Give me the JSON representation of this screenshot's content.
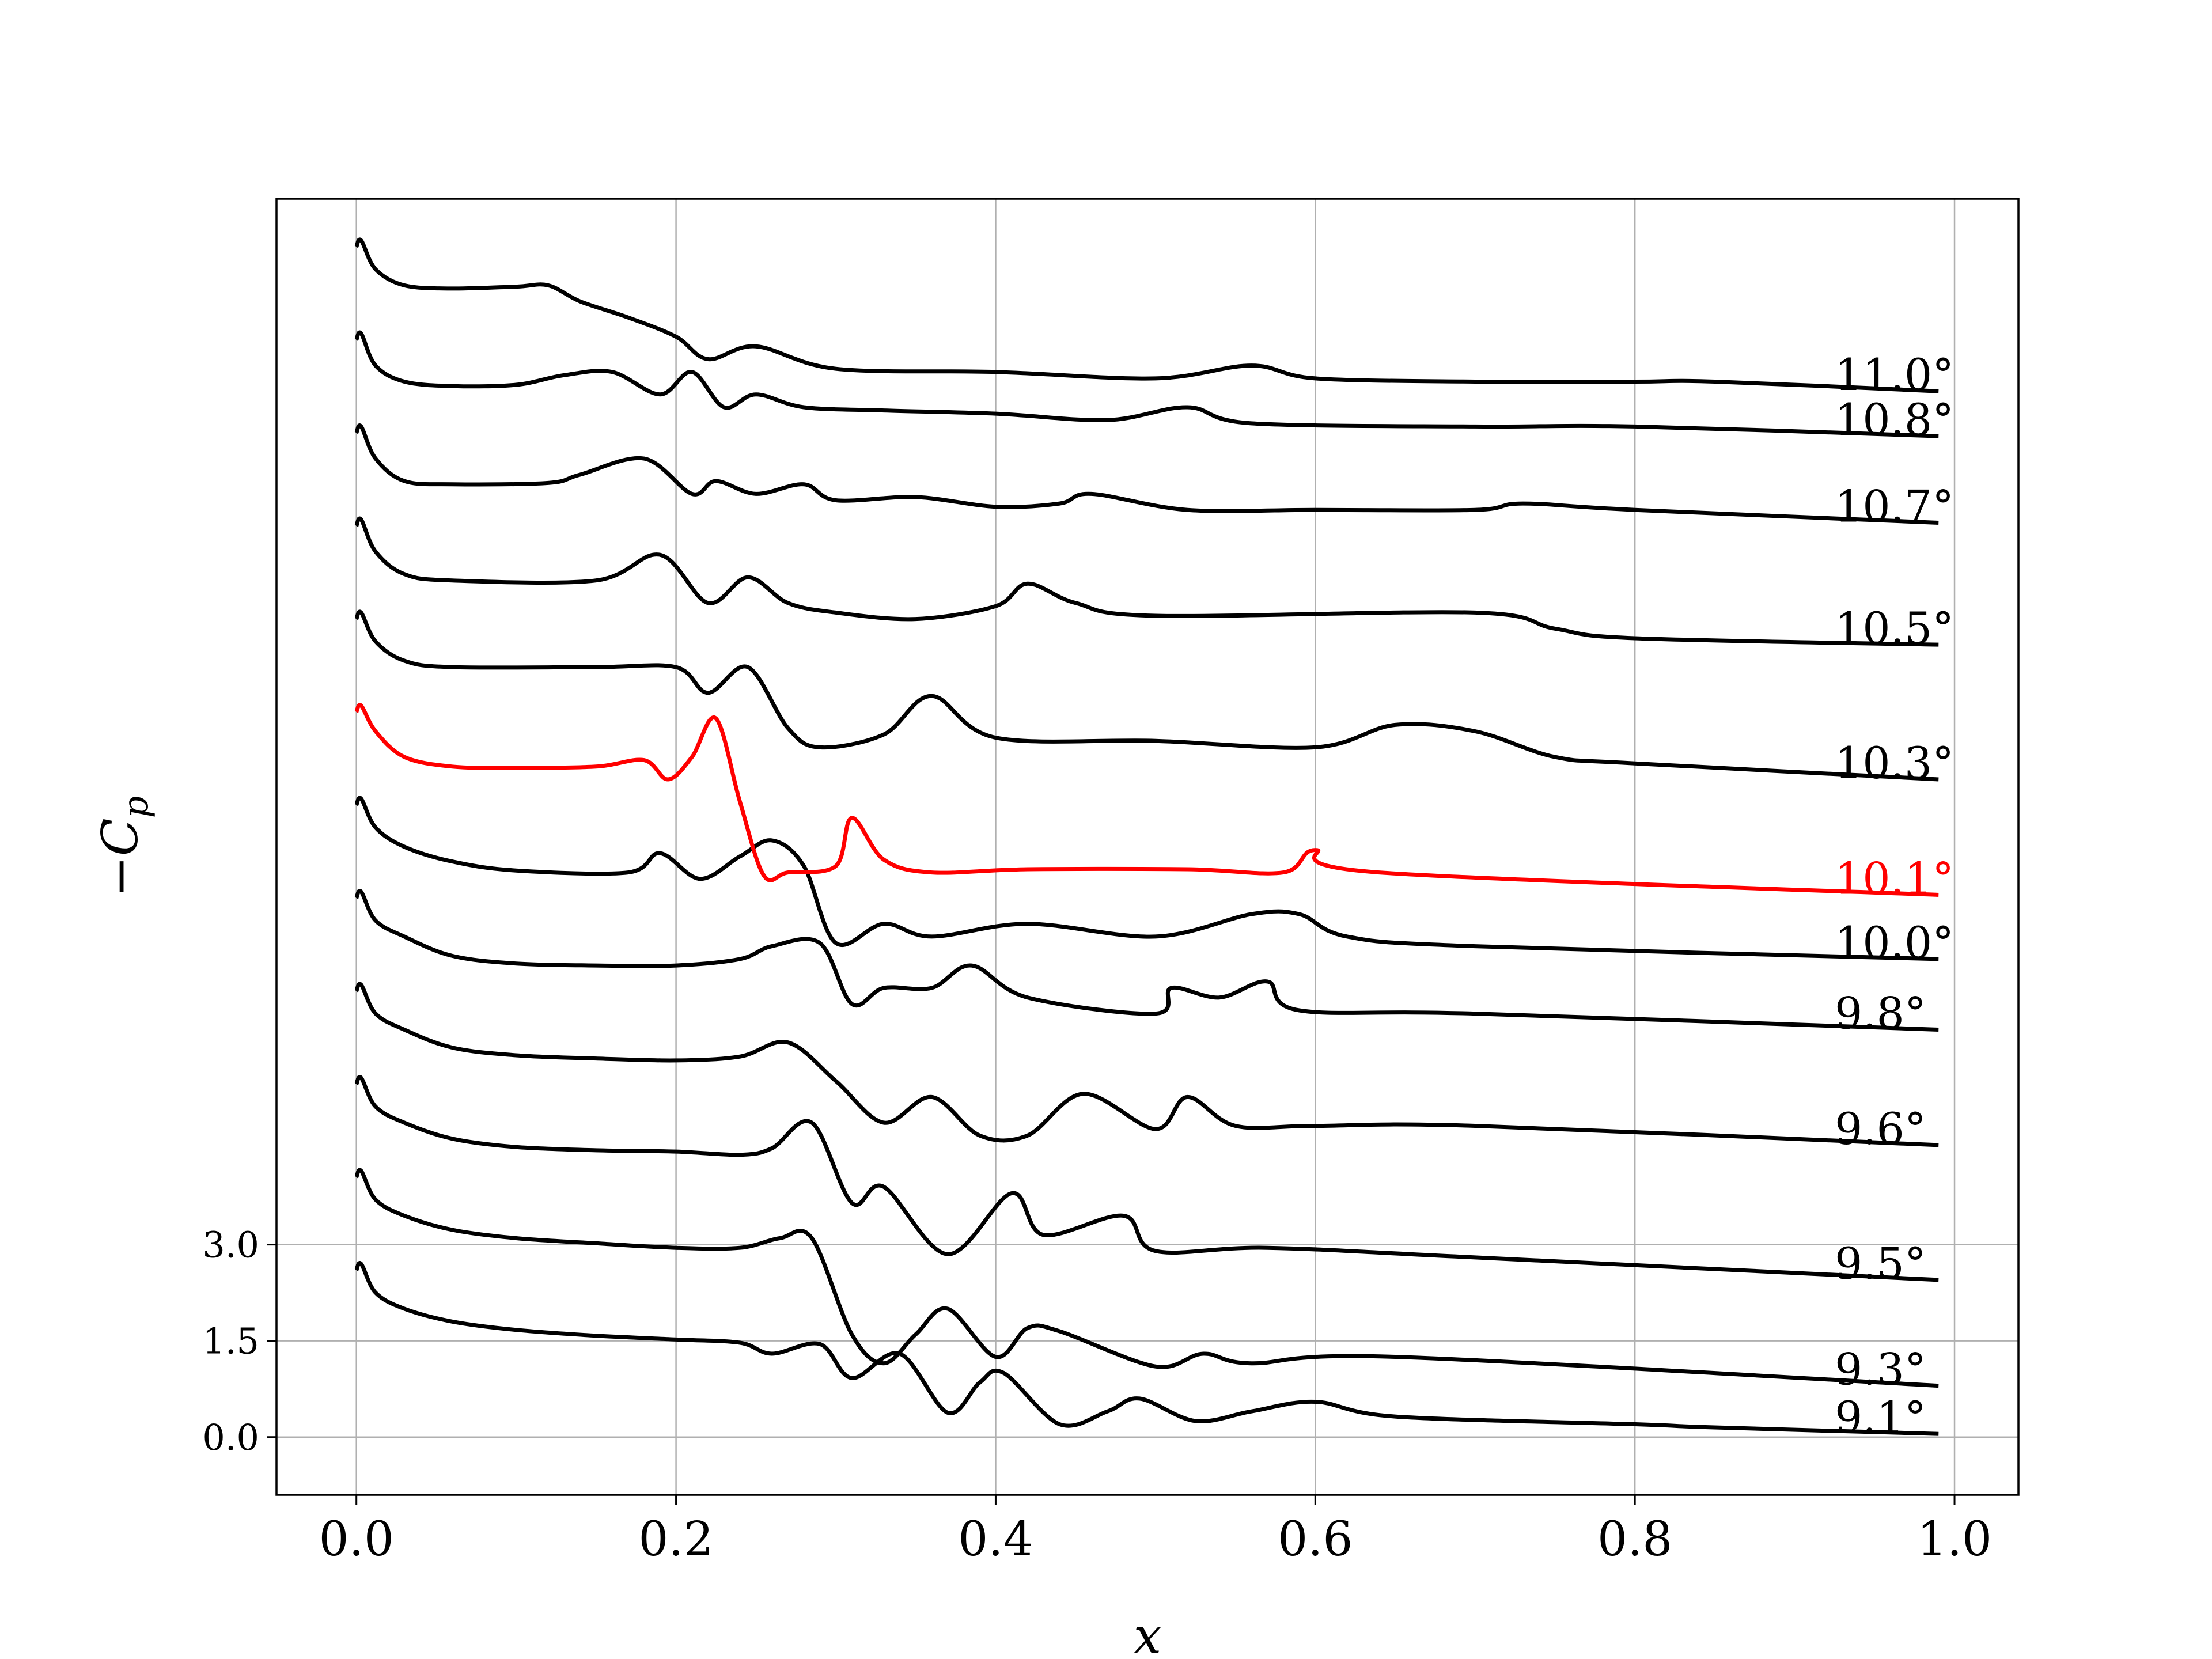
{
  "chart_data": {
    "type": "line",
    "title": "",
    "xlabel": "x",
    "ylabel": "−C",
    "ylabel_subscript": "p",
    "xlim": [
      -0.05,
      1.04
    ],
    "ylim": [
      -0.9,
      19.3
    ],
    "x_ticks": [
      0.0,
      0.2,
      0.4,
      0.6,
      0.8,
      1.0
    ],
    "x_tick_labels": [
      "0.0",
      "0.2",
      "0.4",
      "0.6",
      "0.8",
      "1.0"
    ],
    "y_ticks": [
      0.0,
      1.5,
      3.0
    ],
    "y_tick_labels": [
      "0.0",
      "1.5",
      "3.0"
    ],
    "grid": true,
    "highlight_color": "#ff0000",
    "default_color": "#000000",
    "offset_step": 1.45,
    "series": [
      {
        "name": "9.1°",
        "label": "9.1°",
        "offset": 0.0,
        "color": "#000000",
        "points": [
          [
            0.0,
            2.6
          ],
          [
            0.003,
            2.7
          ],
          [
            0.012,
            2.25
          ],
          [
            0.03,
            2.0
          ],
          [
            0.06,
            1.8
          ],
          [
            0.1,
            1.67
          ],
          [
            0.15,
            1.58
          ],
          [
            0.2,
            1.52
          ],
          [
            0.24,
            1.47
          ],
          [
            0.26,
            1.3
          ],
          [
            0.29,
            1.45
          ],
          [
            0.31,
            0.92
          ],
          [
            0.34,
            1.3
          ],
          [
            0.37,
            0.38
          ],
          [
            0.39,
            0.85
          ],
          [
            0.405,
            1.0
          ],
          [
            0.44,
            0.2
          ],
          [
            0.47,
            0.4
          ],
          [
            0.49,
            0.6
          ],
          [
            0.525,
            0.25
          ],
          [
            0.56,
            0.4
          ],
          [
            0.6,
            0.55
          ],
          [
            0.65,
            0.32
          ],
          [
            0.8,
            0.2
          ],
          [
            0.85,
            0.15
          ],
          [
            0.99,
            0.05
          ]
        ]
      },
      {
        "name": "9.3°",
        "label": "9.3°",
        "offset": 1.45,
        "color": "#000000",
        "points": [
          [
            0.0,
            2.6
          ],
          [
            0.003,
            2.7
          ],
          [
            0.012,
            2.25
          ],
          [
            0.03,
            2.0
          ],
          [
            0.06,
            1.78
          ],
          [
            0.1,
            1.65
          ],
          [
            0.15,
            1.57
          ],
          [
            0.2,
            1.5
          ],
          [
            0.24,
            1.5
          ],
          [
            0.265,
            1.65
          ],
          [
            0.285,
            1.65
          ],
          [
            0.31,
            0.15
          ],
          [
            0.33,
            -0.3
          ],
          [
            0.35,
            0.15
          ],
          [
            0.37,
            0.55
          ],
          [
            0.4,
            -0.2
          ],
          [
            0.42,
            0.25
          ],
          [
            0.44,
            0.2
          ],
          [
            0.5,
            -0.35
          ],
          [
            0.53,
            -0.15
          ],
          [
            0.56,
            -0.3
          ],
          [
            0.65,
            -0.2
          ],
          [
            0.99,
            -0.65
          ]
        ]
      },
      {
        "name": "9.5°",
        "label": "9.5°",
        "offset": 2.9,
        "color": "#000000",
        "points": [
          [
            0.0,
            2.6
          ],
          [
            0.003,
            2.7
          ],
          [
            0.012,
            2.25
          ],
          [
            0.03,
            2.0
          ],
          [
            0.06,
            1.75
          ],
          [
            0.1,
            1.62
          ],
          [
            0.15,
            1.57
          ],
          [
            0.2,
            1.55
          ],
          [
            0.24,
            1.5
          ],
          [
            0.26,
            1.6
          ],
          [
            0.285,
            2.0
          ],
          [
            0.31,
            0.75
          ],
          [
            0.33,
            1.0
          ],
          [
            0.37,
            -0.05
          ],
          [
            0.41,
            0.9
          ],
          [
            0.43,
            0.25
          ],
          [
            0.48,
            0.55
          ],
          [
            0.5,
            0.0
          ],
          [
            0.57,
            0.05
          ],
          [
            0.7,
            -0.1
          ],
          [
            0.99,
            -0.45
          ]
        ]
      },
      {
        "name": "9.6°",
        "label": "9.6°",
        "offset": 4.35,
        "color": "#000000",
        "points": [
          [
            0.0,
            2.6
          ],
          [
            0.003,
            2.7
          ],
          [
            0.012,
            2.25
          ],
          [
            0.03,
            2.0
          ],
          [
            0.06,
            1.72
          ],
          [
            0.1,
            1.6
          ],
          [
            0.15,
            1.55
          ],
          [
            0.2,
            1.52
          ],
          [
            0.24,
            1.58
          ],
          [
            0.27,
            1.8
          ],
          [
            0.3,
            1.2
          ],
          [
            0.33,
            0.55
          ],
          [
            0.36,
            0.95
          ],
          [
            0.39,
            0.35
          ],
          [
            0.42,
            0.35
          ],
          [
            0.455,
            1.0
          ],
          [
            0.5,
            0.45
          ],
          [
            0.52,
            0.95
          ],
          [
            0.55,
            0.5
          ],
          [
            0.6,
            0.5
          ],
          [
            0.7,
            0.5
          ],
          [
            0.99,
            0.2
          ]
        ]
      },
      {
        "name": "9.8°",
        "label": "9.8°",
        "offset": 5.8,
        "color": "#000000",
        "points": [
          [
            0.0,
            2.6
          ],
          [
            0.003,
            2.7
          ],
          [
            0.012,
            2.25
          ],
          [
            0.03,
            2.0
          ],
          [
            0.06,
            1.7
          ],
          [
            0.1,
            1.58
          ],
          [
            0.15,
            1.55
          ],
          [
            0.2,
            1.55
          ],
          [
            0.24,
            1.65
          ],
          [
            0.26,
            1.85
          ],
          [
            0.29,
            1.9
          ],
          [
            0.31,
            0.95
          ],
          [
            0.33,
            1.2
          ],
          [
            0.36,
            1.2
          ],
          [
            0.385,
            1.55
          ],
          [
            0.42,
            1.05
          ],
          [
            0.5,
            0.8
          ],
          [
            0.51,
            1.2
          ],
          [
            0.54,
            1.05
          ],
          [
            0.57,
            1.3
          ],
          [
            0.59,
            0.85
          ],
          [
            0.7,
            0.8
          ],
          [
            0.99,
            0.55
          ]
        ]
      },
      {
        "name": "10.0°",
        "label": "10.0°",
        "offset": 7.25,
        "color": "#000000",
        "points": [
          [
            0.0,
            2.6
          ],
          [
            0.003,
            2.7
          ],
          [
            0.012,
            2.25
          ],
          [
            0.03,
            1.95
          ],
          [
            0.06,
            1.72
          ],
          [
            0.1,
            1.58
          ],
          [
            0.17,
            1.55
          ],
          [
            0.19,
            1.85
          ],
          [
            0.215,
            1.45
          ],
          [
            0.24,
            1.8
          ],
          [
            0.26,
            2.05
          ],
          [
            0.28,
            1.65
          ],
          [
            0.3,
            0.45
          ],
          [
            0.33,
            0.75
          ],
          [
            0.36,
            0.55
          ],
          [
            0.42,
            0.75
          ],
          [
            0.5,
            0.55
          ],
          [
            0.56,
            0.9
          ],
          [
            0.59,
            0.9
          ],
          [
            0.62,
            0.55
          ],
          [
            0.7,
            0.4
          ],
          [
            0.99,
            0.2
          ]
        ]
      },
      {
        "name": "10.1°",
        "label": "10.1°",
        "offset": 8.7,
        "color": "#ff0000",
        "points": [
          [
            0.0,
            2.6
          ],
          [
            0.003,
            2.7
          ],
          [
            0.012,
            2.3
          ],
          [
            0.03,
            1.9
          ],
          [
            0.06,
            1.75
          ],
          [
            0.1,
            1.73
          ],
          [
            0.15,
            1.75
          ],
          [
            0.18,
            1.85
          ],
          [
            0.195,
            1.55
          ],
          [
            0.21,
            1.9
          ],
          [
            0.225,
            2.5
          ],
          [
            0.24,
            1.2
          ],
          [
            0.255,
            0.05
          ],
          [
            0.27,
            0.1
          ],
          [
            0.3,
            0.2
          ],
          [
            0.31,
            0.95
          ],
          [
            0.33,
            0.3
          ],
          [
            0.36,
            0.1
          ],
          [
            0.42,
            0.15
          ],
          [
            0.52,
            0.15
          ],
          [
            0.58,
            0.1
          ],
          [
            0.6,
            0.45
          ],
          [
            0.64,
            0.1
          ],
          [
            0.99,
            -0.25
          ]
        ]
      },
      {
        "name": "10.3°",
        "label": "10.3°",
        "offset": 10.15,
        "color": "#000000",
        "points": [
          [
            0.0,
            2.6
          ],
          [
            0.003,
            2.7
          ],
          [
            0.012,
            2.25
          ],
          [
            0.03,
            1.95
          ],
          [
            0.06,
            1.85
          ],
          [
            0.15,
            1.85
          ],
          [
            0.2,
            1.85
          ],
          [
            0.22,
            1.45
          ],
          [
            0.245,
            1.85
          ],
          [
            0.27,
            0.9
          ],
          [
            0.29,
            0.6
          ],
          [
            0.33,
            0.8
          ],
          [
            0.36,
            1.4
          ],
          [
            0.4,
            0.75
          ],
          [
            0.5,
            0.7
          ],
          [
            0.6,
            0.6
          ],
          [
            0.65,
            0.95
          ],
          [
            0.7,
            0.85
          ],
          [
            0.75,
            0.45
          ],
          [
            0.8,
            0.35
          ],
          [
            0.99,
            0.1
          ]
        ]
      },
      {
        "name": "10.5°",
        "label": "10.5°",
        "offset": 11.6,
        "color": "#000000",
        "points": [
          [
            0.0,
            2.6
          ],
          [
            0.003,
            2.7
          ],
          [
            0.012,
            2.2
          ],
          [
            0.03,
            1.85
          ],
          [
            0.06,
            1.75
          ],
          [
            0.15,
            1.75
          ],
          [
            0.19,
            2.15
          ],
          [
            0.22,
            1.4
          ],
          [
            0.245,
            1.8
          ],
          [
            0.27,
            1.4
          ],
          [
            0.3,
            1.25
          ],
          [
            0.35,
            1.15
          ],
          [
            0.4,
            1.35
          ],
          [
            0.42,
            1.7
          ],
          [
            0.45,
            1.4
          ],
          [
            0.5,
            1.2
          ],
          [
            0.7,
            1.25
          ],
          [
            0.75,
            1.0
          ],
          [
            0.8,
            0.85
          ],
          [
            0.99,
            0.75
          ]
        ]
      },
      {
        "name": "10.7°",
        "label": "10.7°",
        "offset": 13.05,
        "color": "#000000",
        "points": [
          [
            0.0,
            2.6
          ],
          [
            0.003,
            2.7
          ],
          [
            0.012,
            2.2
          ],
          [
            0.03,
            1.85
          ],
          [
            0.06,
            1.8
          ],
          [
            0.12,
            1.82
          ],
          [
            0.14,
            1.95
          ],
          [
            0.18,
            2.2
          ],
          [
            0.21,
            1.65
          ],
          [
            0.225,
            1.85
          ],
          [
            0.25,
            1.65
          ],
          [
            0.28,
            1.8
          ],
          [
            0.3,
            1.55
          ],
          [
            0.35,
            1.6
          ],
          [
            0.4,
            1.45
          ],
          [
            0.44,
            1.5
          ],
          [
            0.46,
            1.65
          ],
          [
            0.52,
            1.4
          ],
          [
            0.6,
            1.4
          ],
          [
            0.7,
            1.4
          ],
          [
            0.73,
            1.5
          ],
          [
            0.8,
            1.4
          ],
          [
            0.99,
            1.2
          ]
        ]
      },
      {
        "name": "10.8°",
        "label": "10.8°",
        "offset": 14.5,
        "color": "#000000",
        "points": [
          [
            0.0,
            2.6
          ],
          [
            0.003,
            2.7
          ],
          [
            0.012,
            2.2
          ],
          [
            0.03,
            1.95
          ],
          [
            0.06,
            1.88
          ],
          [
            0.1,
            1.9
          ],
          [
            0.13,
            2.05
          ],
          [
            0.16,
            2.1
          ],
          [
            0.19,
            1.75
          ],
          [
            0.21,
            2.1
          ],
          [
            0.23,
            1.55
          ],
          [
            0.25,
            1.75
          ],
          [
            0.28,
            1.55
          ],
          [
            0.33,
            1.5
          ],
          [
            0.4,
            1.45
          ],
          [
            0.47,
            1.35
          ],
          [
            0.52,
            1.55
          ],
          [
            0.56,
            1.3
          ],
          [
            0.7,
            1.25
          ],
          [
            0.8,
            1.25
          ],
          [
            0.99,
            1.1
          ]
        ]
      },
      {
        "name": "11.0°",
        "label": "11.0°",
        "offset": 15.95,
        "color": "#000000",
        "points": [
          [
            0.0,
            2.6
          ],
          [
            0.003,
            2.7
          ],
          [
            0.012,
            2.25
          ],
          [
            0.03,
            2.0
          ],
          [
            0.06,
            1.95
          ],
          [
            0.1,
            1.98
          ],
          [
            0.12,
            2.0
          ],
          [
            0.14,
            1.75
          ],
          [
            0.17,
            1.5
          ],
          [
            0.2,
            1.2
          ],
          [
            0.22,
            0.85
          ],
          [
            0.25,
            1.05
          ],
          [
            0.3,
            0.7
          ],
          [
            0.4,
            0.65
          ],
          [
            0.5,
            0.55
          ],
          [
            0.56,
            0.75
          ],
          [
            0.6,
            0.55
          ],
          [
            0.7,
            0.5
          ],
          [
            0.8,
            0.5
          ],
          [
            0.85,
            0.5
          ],
          [
            0.99,
            0.35
          ]
        ]
      }
    ]
  }
}
